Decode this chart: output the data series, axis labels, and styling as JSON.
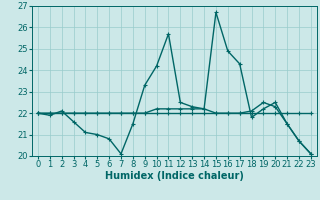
{
  "xlabel": "Humidex (Indice chaleur)",
  "xlim": [
    -0.5,
    23.5
  ],
  "ylim": [
    20,
    27
  ],
  "yticks": [
    20,
    21,
    22,
    23,
    24,
    25,
    26,
    27
  ],
  "xticks": [
    0,
    1,
    2,
    3,
    4,
    5,
    6,
    7,
    8,
    9,
    10,
    11,
    12,
    13,
    14,
    15,
    16,
    17,
    18,
    19,
    20,
    21,
    22,
    23
  ],
  "background_color": "#cce8e8",
  "grid_color": "#99cccc",
  "line_color": "#006666",
  "line1_x": [
    0,
    1,
    2,
    3,
    4,
    5,
    6,
    7,
    8,
    9,
    10,
    11,
    12,
    13,
    14,
    15,
    16,
    17,
    18,
    19,
    20,
    21,
    22,
    23
  ],
  "line1_y": [
    22.0,
    22.0,
    22.0,
    22.0,
    22.0,
    22.0,
    22.0,
    22.0,
    22.0,
    22.0,
    22.0,
    22.0,
    22.0,
    22.0,
    22.0,
    22.0,
    22.0,
    22.0,
    22.0,
    22.0,
    22.0,
    22.0,
    22.0,
    22.0
  ],
  "line2_x": [
    0,
    1,
    2,
    3,
    4,
    5,
    6,
    7,
    8,
    9,
    10,
    11,
    12,
    13,
    14,
    15,
    16,
    17,
    18,
    19,
    20,
    21,
    22,
    23
  ],
  "line2_y": [
    22.0,
    21.9,
    22.1,
    21.6,
    21.1,
    21.0,
    20.8,
    20.1,
    21.5,
    23.3,
    24.2,
    25.7,
    22.5,
    22.3,
    22.2,
    22.0,
    22.0,
    22.0,
    22.1,
    22.5,
    22.3,
    21.5,
    20.7,
    20.1
  ],
  "line3_x": [
    0,
    1,
    2,
    3,
    4,
    5,
    6,
    7,
    8,
    9,
    10,
    11,
    12,
    13,
    14,
    15,
    16,
    17,
    18,
    19,
    20,
    21,
    22,
    23
  ],
  "line3_y": [
    22.0,
    22.0,
    22.0,
    22.0,
    22.0,
    22.0,
    22.0,
    22.0,
    22.0,
    22.0,
    22.2,
    22.2,
    22.2,
    22.2,
    22.2,
    26.7,
    24.9,
    24.3,
    21.8,
    22.2,
    22.5,
    21.5,
    20.7,
    20.1
  ],
  "fontsize_tick": 6,
  "fontsize_xlabel": 7,
  "marker": "+"
}
